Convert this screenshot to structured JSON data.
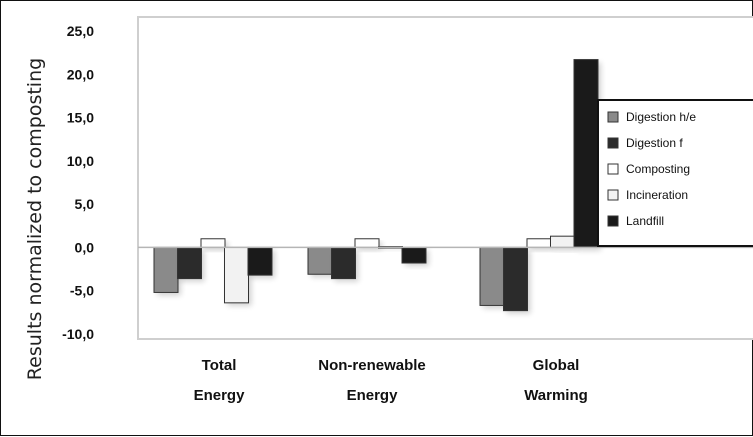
{
  "chart_data": {
    "type": "bar",
    "ylabel": "Results normalized to composting",
    "ylim": [
      -10,
      25
    ],
    "yticks": [
      "25,0",
      "20,0",
      "15,0",
      "10,0",
      "5,0",
      "0,0",
      "-5,0",
      "-10,0"
    ],
    "categories": [
      [
        "Total",
        "Energy"
      ],
      [
        "Non-renewable",
        "Energy"
      ],
      [
        "Global",
        "Warming"
      ]
    ],
    "series": [
      {
        "name": "Digestion h/e",
        "color": "#8a8a8a",
        "values": [
          -5.2,
          -3.1,
          -6.7
        ]
      },
      {
        "name": "Digestion f",
        "color": "#2b2b2b",
        "values": [
          -3.6,
          -3.6,
          -7.3
        ]
      },
      {
        "name": "Composting",
        "color": "#ffffff",
        "values": [
          1.0,
          1.0,
          1.0
        ]
      },
      {
        "name": "Incineration",
        "color": "#f2f2f2",
        "values": [
          -6.4,
          0.1,
          1.3
        ]
      },
      {
        "name": "Landfill",
        "color": "#1a1a1a",
        "values": [
          -3.2,
          -1.8,
          21.7
        ]
      }
    ],
    "legend_position": "right",
    "grid": false
  }
}
